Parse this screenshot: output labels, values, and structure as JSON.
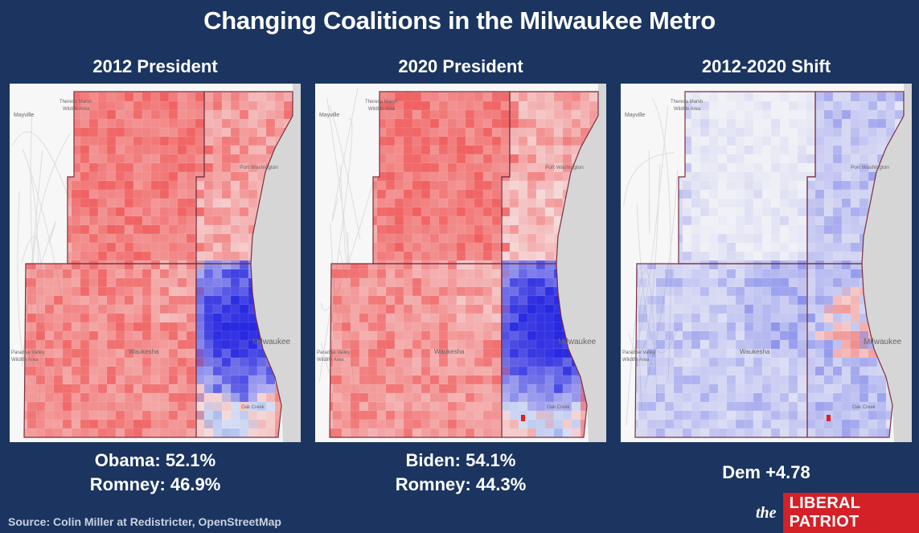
{
  "title": "Changing Coalitions in the Milwaukee Metro",
  "panels": [
    {
      "title": "2012 President",
      "results": [
        "Obama: 52.1%",
        "Romney: 46.9%"
      ],
      "mode": "2012"
    },
    {
      "title": "2020 President",
      "results": [
        "Biden: 54.1%",
        "Romney: 44.3%"
      ],
      "mode": "2020"
    },
    {
      "title": "2012-2020 Shift",
      "results": [
        "Dem +4.78"
      ],
      "mode": "shift"
    }
  ],
  "map_labels": {
    "mayville": "Mayville",
    "theresa": "Theresa Marsh",
    "wildlife": "Wildlife Area",
    "port": "Port Washington",
    "milwaukee": "Milwaukee",
    "waukesha": "Waukesha",
    "paradise": "Paradise Valley",
    "wildlife2": "Wildlife Area",
    "oak": "Oak Creek"
  },
  "colors": {
    "background": "#1b3560",
    "republican": "#f07070",
    "democratic": "#2a2ae0",
    "lake": "#d6d6d6",
    "brand_red": "#d42027"
  },
  "source": "Source: Colin Miller at Redistricter, OpenStreetMap",
  "brand": {
    "the": "the",
    "name": "LIBERAL PATRIOT"
  }
}
